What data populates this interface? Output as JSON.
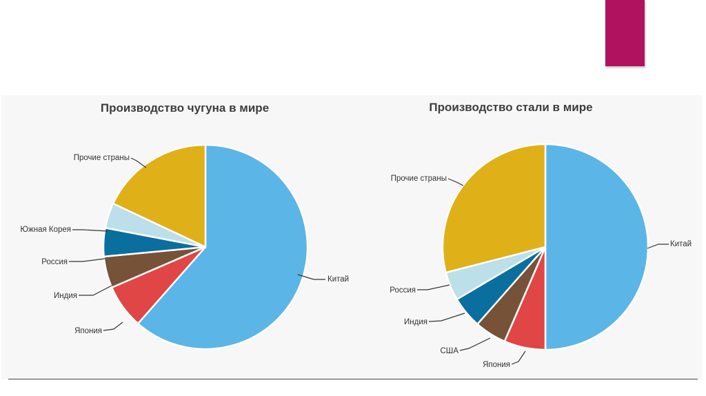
{
  "slide": {
    "accent_color": "#b0125f"
  },
  "chart_data": [
    {
      "type": "pie",
      "title": "Производство чугуна в мире",
      "slices": [
        {
          "label": "Китай",
          "value": 61.5,
          "color": "#5bb5e6"
        },
        {
          "label": "Япония",
          "value": 7,
          "color": "#e04646"
        },
        {
          "label": "Индия",
          "value": 5,
          "color": "#765239"
        },
        {
          "label": "Россия",
          "value": 4.5,
          "color": "#0a6f9e"
        },
        {
          "label": "Южная Корея",
          "value": 4,
          "color": "#bcdfea"
        },
        {
          "label": "Прочие страны",
          "value": 18,
          "color": "#e0b019"
        }
      ]
    },
    {
      "type": "pie",
      "title": "Производство стали в мире",
      "slices": [
        {
          "label": "Китай",
          "value": 50,
          "color": "#5bb5e6"
        },
        {
          "label": "Япония",
          "value": 6.5,
          "color": "#e04646"
        },
        {
          "label": "США",
          "value": 5,
          "color": "#765239"
        },
        {
          "label": "Индия",
          "value": 5,
          "color": "#0a6f9e"
        },
        {
          "label": "Россия",
          "value": 4.5,
          "color": "#bcdfea"
        },
        {
          "label": "Прочие страны",
          "value": 29,
          "color": "#e0b019"
        }
      ]
    }
  ]
}
